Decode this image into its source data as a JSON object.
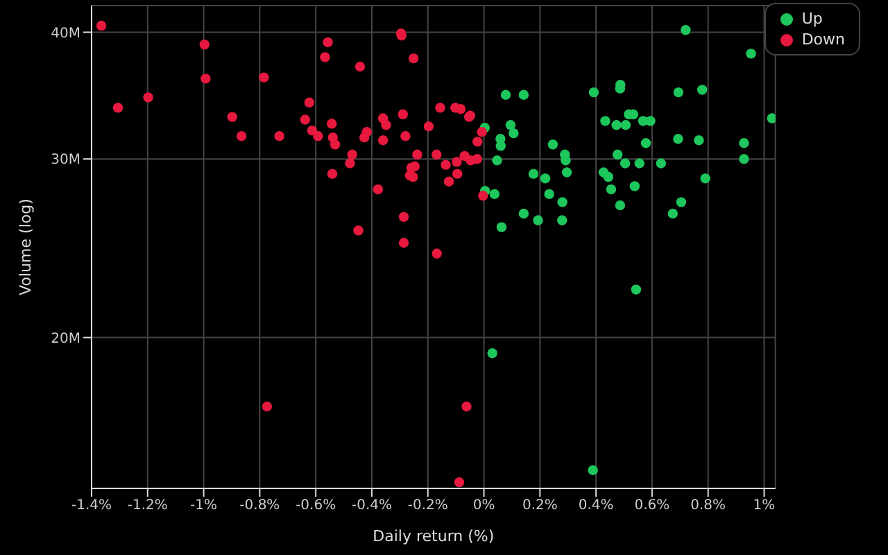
{
  "chart_data": {
    "type": "scatter",
    "xlabel": "Daily return (%)",
    "ylabel": "Volume (log)",
    "log": "y",
    "grid": true,
    "legend": "top right",
    "marker": "circle",
    "xlim": [
      -1.4,
      1.04
    ],
    "xticks": [
      {
        "value": -1.4,
        "label": "-1.4%"
      },
      {
        "value": -1.2,
        "label": "-1.2%"
      },
      {
        "value": -1,
        "label": "-1%"
      },
      {
        "value": -0.8,
        "label": "-0.8%"
      },
      {
        "value": -0.6,
        "label": "-0.6%"
      },
      {
        "value": -0.4,
        "label": "-0.4%"
      },
      {
        "value": -0.2,
        "label": "-0.2%"
      },
      {
        "value": 0,
        "label": "0%"
      },
      {
        "value": 0.2,
        "label": "0.2%"
      },
      {
        "value": 0.4,
        "label": "0.4%"
      },
      {
        "value": 0.6,
        "label": "0.6%"
      },
      {
        "value": 0.8,
        "label": "0.8%"
      },
      {
        "value": 1,
        "label": "1%"
      }
    ],
    "ylim": [
      14.2,
      42.5
    ],
    "yticks": [
      {
        "value": 20,
        "label": "20M"
      },
      {
        "value": 30,
        "label": "30M"
      },
      {
        "value": 40,
        "label": "40M"
      }
    ],
    "series": [
      {
        "name": "Up",
        "color": "#1ec75c",
        "x": [
          0.003,
          0.004,
          0.038,
          0.03,
          0.047,
          0.078,
          0.142,
          0.059,
          0.06,
          0.095,
          0.106,
          0.063,
          0.142,
          0.177,
          0.219,
          0.233,
          0.193,
          0.246,
          0.289,
          0.292,
          0.296,
          0.28,
          0.279,
          0.392,
          0.389,
          0.433,
          0.427,
          0.444,
          0.454,
          0.487,
          0.486,
          0.473,
          0.506,
          0.477,
          0.504,
          0.486,
          0.517,
          0.533,
          0.568,
          0.594,
          0.578,
          0.555,
          0.538,
          0.543,
          0.632,
          0.694,
          0.779,
          0.693,
          0.767,
          0.79,
          0.704,
          0.674,
          0.928,
          0.928,
          1.028,
          0.72,
          0.953
        ],
        "values": [
          32.2,
          27.9,
          27.7,
          19.3,
          29.9,
          34.7,
          34.7,
          31.4,
          30.9,
          32.4,
          31.8,
          25.7,
          26.5,
          29.0,
          28.7,
          27.7,
          26.1,
          31.0,
          30.3,
          29.9,
          29.1,
          27.2,
          26.1,
          34.9,
          14.8,
          32.7,
          29.1,
          28.8,
          28.0,
          35.5,
          35.2,
          32.4,
          32.4,
          30.3,
          29.7,
          27.0,
          33.2,
          33.2,
          32.7,
          32.7,
          31.1,
          29.7,
          28.2,
          22.3,
          29.7,
          34.9,
          35.1,
          31.4,
          31.3,
          28.7,
          27.2,
          26.5,
          31.1,
          30.0,
          32.9,
          40.2,
          38.1
        ]
      },
      {
        "name": "Down",
        "color": "#e8193f",
        "x": [
          -1.365,
          -1.306,
          -1.198,
          -0.997,
          -0.993,
          -0.898,
          -0.865,
          -0.785,
          -0.774,
          -0.73,
          -0.623,
          -0.638,
          -0.613,
          -0.592,
          -0.557,
          -0.567,
          -0.543,
          -0.539,
          -0.531,
          -0.541,
          -0.442,
          -0.47,
          -0.478,
          -0.448,
          -0.418,
          -0.427,
          -0.36,
          -0.349,
          -0.36,
          -0.378,
          -0.296,
          -0.294,
          -0.251,
          -0.289,
          -0.28,
          -0.238,
          -0.259,
          -0.247,
          -0.264,
          -0.253,
          -0.286,
          -0.286,
          -0.156,
          -0.197,
          -0.169,
          -0.136,
          -0.125,
          -0.168,
          -0.102,
          -0.083,
          -0.049,
          -0.053,
          -0.069,
          -0.097,
          -0.095,
          -0.047,
          -0.024,
          -0.023,
          -0.007,
          -0.003,
          -0.062,
          -0.088
        ],
        "values": [
          40.6,
          33.7,
          34.5,
          38.9,
          36.0,
          33.0,
          31.6,
          36.1,
          17.1,
          31.6,
          34.1,
          32.8,
          32.0,
          31.6,
          39.1,
          37.8,
          32.5,
          31.5,
          31.0,
          29.0,
          37.0,
          30.3,
          29.7,
          25.5,
          31.9,
          31.5,
          32.9,
          32.4,
          31.3,
          28.0,
          39.9,
          39.7,
          37.7,
          33.2,
          31.6,
          30.3,
          29.4,
          29.5,
          28.9,
          28.8,
          26.3,
          24.8,
          33.7,
          32.3,
          30.3,
          29.6,
          28.5,
          24.2,
          33.7,
          33.6,
          33.1,
          33.0,
          30.2,
          29.8,
          29.0,
          29.9,
          30.0,
          31.2,
          31.9,
          27.6,
          17.1,
          14.4
        ]
      }
    ]
  }
}
